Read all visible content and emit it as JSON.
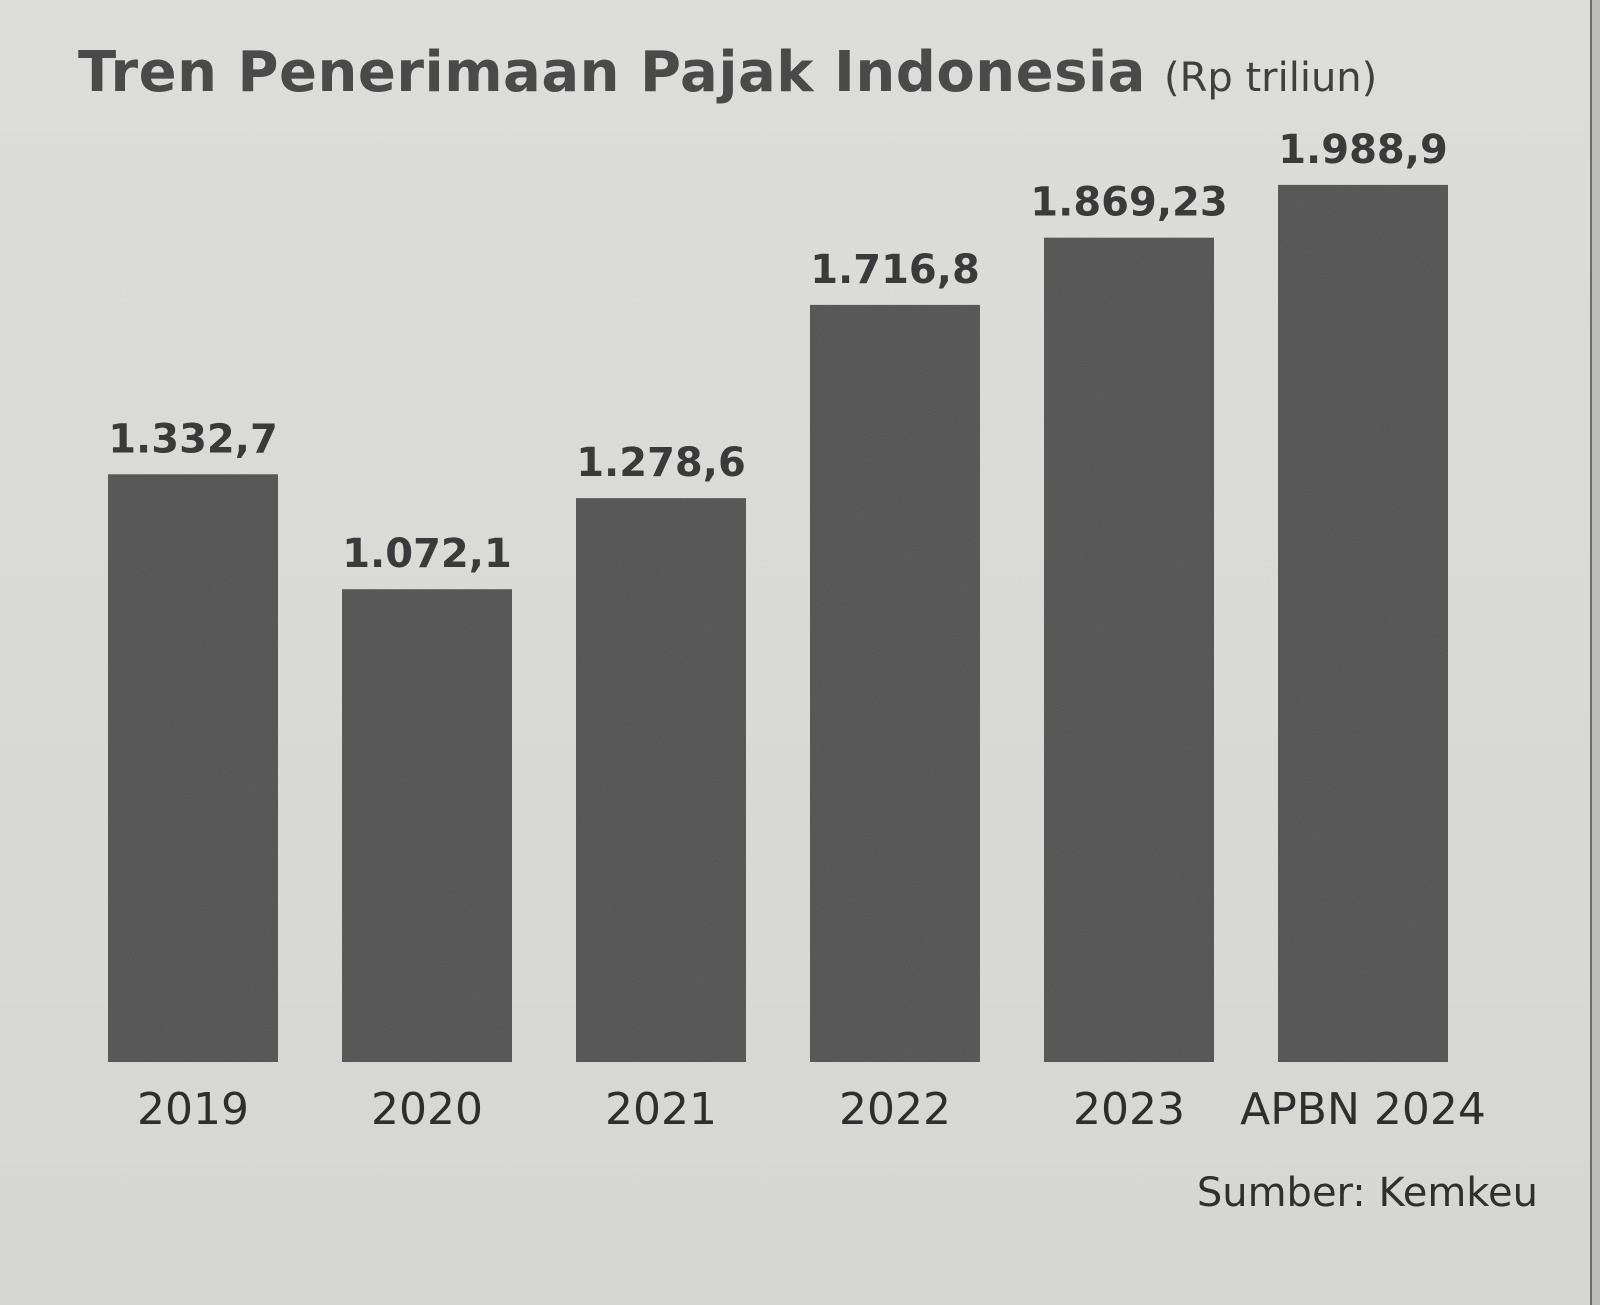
{
  "chart_data": {
    "type": "bar",
    "title": "Tren Penerimaan Pajak Indonesia",
    "unit": "(Rp triliun)",
    "categories": [
      "2019",
      "2020",
      "2021",
      "2022",
      "2023",
      "APBN 2024"
    ],
    "values": [
      1332.7,
      1072.1,
      1278.6,
      1716.8,
      1869.23,
      1988.9
    ],
    "value_labels": [
      "1.332,7",
      "1.072,1",
      "1.278,6",
      "1.716,8",
      "1.869,23",
      "1.988,9"
    ],
    "xlabel": "",
    "ylabel": "",
    "ylim": [
      0,
      2000
    ],
    "grid": false,
    "bar_color": "#5c5c5c",
    "source": "Sumber: Kemkeu"
  }
}
